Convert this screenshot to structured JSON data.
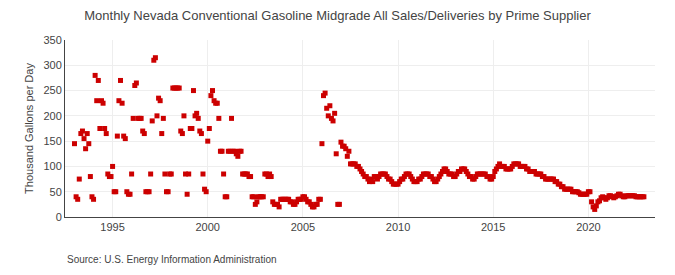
{
  "chart_data": {
    "type": "scatter",
    "title": "Monthly Nevada Conventional Gasoline Midgrade All Sales/Deliveries by Prime Supplier",
    "ylabel": "Thousand Gallons per Day",
    "annotation": "Source: U.S. Energy Information Administration",
    "color": "#cc0000",
    "marker": "square",
    "grid": true,
    "xlim": [
      1992.5,
      2023.5
    ],
    "xticks": [
      1995,
      2000,
      2005,
      2010,
      2015,
      2020
    ],
    "ylim": [
      0,
      350
    ],
    "yticks": [
      0,
      50,
      100,
      150,
      200,
      250,
      300,
      350
    ],
    "x": [
      1993.0,
      1993.083,
      1993.167,
      1993.25,
      1993.333,
      1993.417,
      1993.5,
      1993.583,
      1993.667,
      1993.75,
      1993.833,
      1993.917,
      1994.0,
      1994.083,
      1994.167,
      1994.25,
      1994.333,
      1994.417,
      1994.5,
      1994.583,
      1994.667,
      1994.75,
      1994.833,
      1994.917,
      1995.0,
      1995.083,
      1995.167,
      1995.25,
      1995.333,
      1995.417,
      1995.5,
      1995.583,
      1995.667,
      1995.75,
      1995.833,
      1995.917,
      1996.0,
      1996.083,
      1996.167,
      1996.25,
      1996.333,
      1996.417,
      1996.5,
      1996.583,
      1996.667,
      1996.75,
      1996.833,
      1996.917,
      1997.0,
      1997.083,
      1997.167,
      1997.25,
      1997.333,
      1997.417,
      1997.5,
      1997.583,
      1997.667,
      1997.75,
      1997.833,
      1997.917,
      1998.0,
      1998.083,
      1998.167,
      1998.25,
      1998.333,
      1998.417,
      1998.5,
      1998.583,
      1998.667,
      1998.75,
      1998.833,
      1998.917,
      1999.0,
      1999.083,
      1999.167,
      1999.25,
      1999.333,
      1999.417,
      1999.5,
      1999.583,
      1999.667,
      1999.75,
      1999.833,
      1999.917,
      2000.0,
      2000.083,
      2000.167,
      2000.25,
      2000.333,
      2000.417,
      2000.5,
      2000.583,
      2000.667,
      2000.75,
      2000.833,
      2000.917,
      2001.0,
      2001.083,
      2001.167,
      2001.25,
      2001.333,
      2001.417,
      2001.5,
      2001.583,
      2001.667,
      2001.75,
      2001.833,
      2001.917,
      2002.0,
      2002.083,
      2002.167,
      2002.25,
      2002.333,
      2002.417,
      2002.5,
      2002.583,
      2002.667,
      2002.75,
      2002.833,
      2002.917,
      2003.0,
      2003.083,
      2003.167,
      2003.25,
      2003.333,
      2003.417,
      2003.5,
      2003.583,
      2003.667,
      2003.75,
      2003.833,
      2003.917,
      2004.0,
      2004.083,
      2004.167,
      2004.25,
      2004.333,
      2004.417,
      2004.5,
      2004.583,
      2004.667,
      2004.75,
      2004.833,
      2004.917,
      2005.0,
      2005.083,
      2005.167,
      2005.25,
      2005.333,
      2005.417,
      2005.5,
      2005.583,
      2005.667,
      2005.75,
      2005.833,
      2005.917,
      2006.0,
      2006.083,
      2006.167,
      2006.25,
      2006.333,
      2006.417,
      2006.5,
      2006.583,
      2006.667,
      2006.75,
      2006.833,
      2006.917,
      2007.0,
      2007.083,
      2007.167,
      2007.25,
      2007.333,
      2007.417,
      2007.5,
      2007.583,
      2007.667,
      2007.75,
      2007.833,
      2007.917,
      2008.0,
      2008.083,
      2008.167,
      2008.25,
      2008.333,
      2008.417,
      2008.5,
      2008.583,
      2008.667,
      2008.75,
      2008.833,
      2008.917,
      2009.0,
      2009.083,
      2009.167,
      2009.25,
      2009.333,
      2009.417,
      2009.5,
      2009.583,
      2009.667,
      2009.75,
      2009.833,
      2009.917,
      2010.0,
      2010.083,
      2010.167,
      2010.25,
      2010.333,
      2010.417,
      2010.5,
      2010.583,
      2010.667,
      2010.75,
      2010.833,
      2010.917,
      2011.0,
      2011.083,
      2011.167,
      2011.25,
      2011.333,
      2011.417,
      2011.5,
      2011.583,
      2011.667,
      2011.75,
      2011.833,
      2011.917,
      2012.0,
      2012.083,
      2012.167,
      2012.25,
      2012.333,
      2012.417,
      2012.5,
      2012.583,
      2012.667,
      2012.75,
      2012.833,
      2012.917,
      2013.0,
      2013.083,
      2013.167,
      2013.25,
      2013.333,
      2013.417,
      2013.5,
      2013.583,
      2013.667,
      2013.75,
      2013.833,
      2013.917,
      2014.0,
      2014.083,
      2014.167,
      2014.25,
      2014.333,
      2014.417,
      2014.5,
      2014.583,
      2014.667,
      2014.75,
      2014.833,
      2014.917,
      2015.0,
      2015.083,
      2015.167,
      2015.25,
      2015.333,
      2015.417,
      2015.5,
      2015.583,
      2015.667,
      2015.75,
      2015.833,
      2015.917,
      2016.0,
      2016.083,
      2016.167,
      2016.25,
      2016.333,
      2016.417,
      2016.5,
      2016.583,
      2016.667,
      2016.75,
      2016.833,
      2016.917,
      2017.0,
      2017.083,
      2017.167,
      2017.25,
      2017.333,
      2017.417,
      2017.5,
      2017.583,
      2017.667,
      2017.75,
      2017.833,
      2017.917,
      2018.0,
      2018.083,
      2018.167,
      2018.25,
      2018.333,
      2018.417,
      2018.5,
      2018.583,
      2018.667,
      2018.75,
      2018.833,
      2018.917,
      2019.0,
      2019.083,
      2019.167,
      2019.25,
      2019.333,
      2019.417,
      2019.5,
      2019.583,
      2019.667,
      2019.75,
      2019.833,
      2019.917,
      2020.0,
      2020.083,
      2020.167,
      2020.25,
      2020.333,
      2020.417,
      2020.5,
      2020.583,
      2020.667,
      2020.75,
      2020.833,
      2020.917,
      2021.0,
      2021.083,
      2021.167,
      2021.25,
      2021.333,
      2021.417,
      2021.5,
      2021.583,
      2021.667,
      2021.75,
      2021.833,
      2021.917,
      2022.0,
      2022.083,
      2022.167,
      2022.25,
      2022.333,
      2022.417,
      2022.5,
      2022.583,
      2022.667,
      2022.75,
      2022.833,
      2022.917
    ],
    "values": [
      145,
      40,
      35,
      75,
      165,
      170,
      155,
      135,
      165,
      145,
      80,
      40,
      35,
      280,
      230,
      270,
      175,
      230,
      225,
      175,
      165,
      85,
      80,
      80,
      100,
      50,
      50,
      160,
      230,
      270,
      225,
      160,
      155,
      50,
      45,
      45,
      85,
      195,
      260,
      265,
      195,
      195,
      195,
      170,
      165,
      50,
      50,
      50,
      85,
      190,
      310,
      315,
      200,
      235,
      230,
      165,
      195,
      85,
      50,
      50,
      85,
      85,
      255,
      255,
      255,
      255,
      255,
      170,
      165,
      200,
      85,
      45,
      85,
      175,
      175,
      250,
      200,
      205,
      195,
      170,
      165,
      85,
      55,
      50,
      150,
      175,
      240,
      250,
      230,
      225,
      225,
      195,
      130,
      130,
      85,
      40,
      40,
      130,
      130,
      195,
      130,
      130,
      125,
      120,
      130,
      130,
      85,
      85,
      85,
      85,
      80,
      80,
      40,
      40,
      25,
      30,
      40,
      40,
      40,
      40,
      85,
      85,
      80,
      85,
      80,
      30,
      25,
      25,
      25,
      20,
      35,
      35,
      35,
      35,
      35,
      35,
      30,
      30,
      25,
      25,
      30,
      35,
      35,
      35,
      40,
      40,
      35,
      30,
      30,
      25,
      20,
      20,
      25,
      25,
      35,
      35,
      145,
      240,
      245,
      215,
      200,
      220,
      195,
      190,
      205,
      125,
      25,
      25,
      148,
      140,
      140,
      135,
      120,
      130,
      105,
      105,
      105,
      105,
      100,
      100,
      95,
      90,
      85,
      80,
      80,
      75,
      70,
      75,
      70,
      80,
      80,
      75,
      80,
      85,
      85,
      85,
      85,
      80,
      75,
      75,
      70,
      65,
      65,
      65,
      65,
      70,
      75,
      75,
      80,
      85,
      85,
      85,
      80,
      75,
      70,
      70,
      70,
      75,
      75,
      80,
      85,
      85,
      85,
      85,
      80,
      80,
      75,
      70,
      70,
      75,
      80,
      85,
      90,
      95,
      95,
      90,
      85,
      85,
      85,
      80,
      80,
      85,
      90,
      90,
      95,
      95,
      95,
      90,
      85,
      80,
      80,
      75,
      75,
      80,
      85,
      85,
      85,
      85,
      85,
      85,
      80,
      80,
      75,
      75,
      80,
      90,
      95,
      100,
      105,
      100,
      100,
      100,
      95,
      95,
      95,
      95,
      100,
      105,
      105,
      105,
      105,
      100,
      100,
      100,
      100,
      95,
      95,
      90,
      90,
      90,
      90,
      85,
      85,
      85,
      85,
      80,
      80,
      75,
      75,
      75,
      75,
      75,
      75,
      70,
      70,
      65,
      65,
      60,
      60,
      55,
      55,
      55,
      55,
      55,
      50,
      50,
      50,
      50,
      48,
      45,
      45,
      45,
      45,
      45,
      50,
      50,
      30,
      20,
      15,
      22,
      30,
      32,
      38,
      40,
      38,
      35,
      38,
      42,
      42,
      40,
      38,
      40,
      42,
      45,
      45,
      42,
      40,
      40,
      42,
      42,
      42,
      42,
      42,
      42,
      40,
      40,
      40,
      40,
      40,
      40
    ]
  }
}
